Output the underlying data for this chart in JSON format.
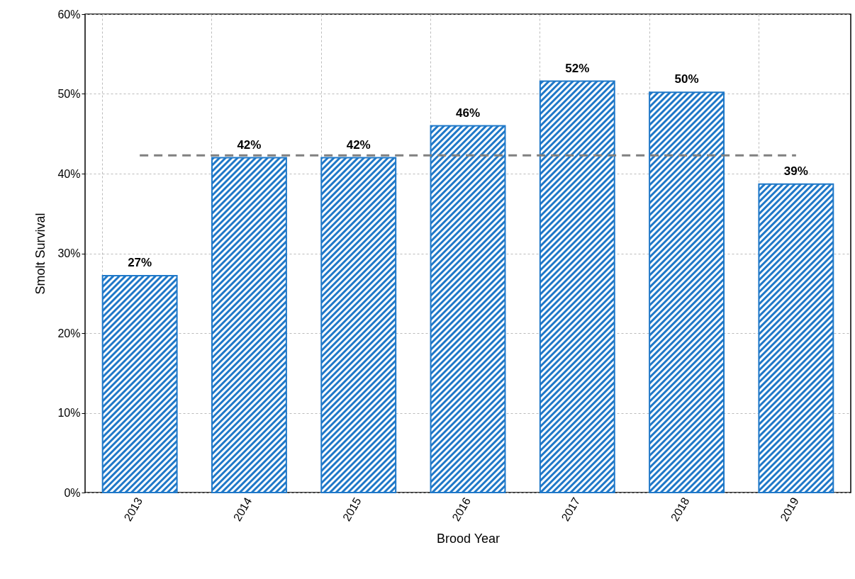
{
  "chart_data": {
    "type": "bar",
    "xlabel": "Brood Year",
    "ylabel": "Smolt Survival",
    "categories": [
      "2013",
      "2014",
      "2015",
      "2016",
      "2017",
      "2018",
      "2019"
    ],
    "values": [
      27.2,
      42,
      42,
      46,
      51.6,
      50.2,
      38.7
    ],
    "value_labels": [
      "27%",
      "42%",
      "42%",
      "46%",
      "52%",
      "50%",
      "39%"
    ],
    "color": "#1f78c8",
    "ylim": [
      0,
      60
    ],
    "yticks": [
      {
        "value": 0,
        "label": "0%"
      },
      {
        "value": 10,
        "label": "10%"
      },
      {
        "value": 20,
        "label": "20%"
      },
      {
        "value": 30,
        "label": "30%"
      },
      {
        "value": 40,
        "label": "40%"
      },
      {
        "value": 50,
        "label": "50%"
      },
      {
        "value": 60,
        "label": "60%"
      }
    ],
    "ref_lines": [
      {
        "axis": "y",
        "value": 42.3,
        "color": "#808080",
        "line_style": "dashed"
      }
    ],
    "grid": true
  }
}
